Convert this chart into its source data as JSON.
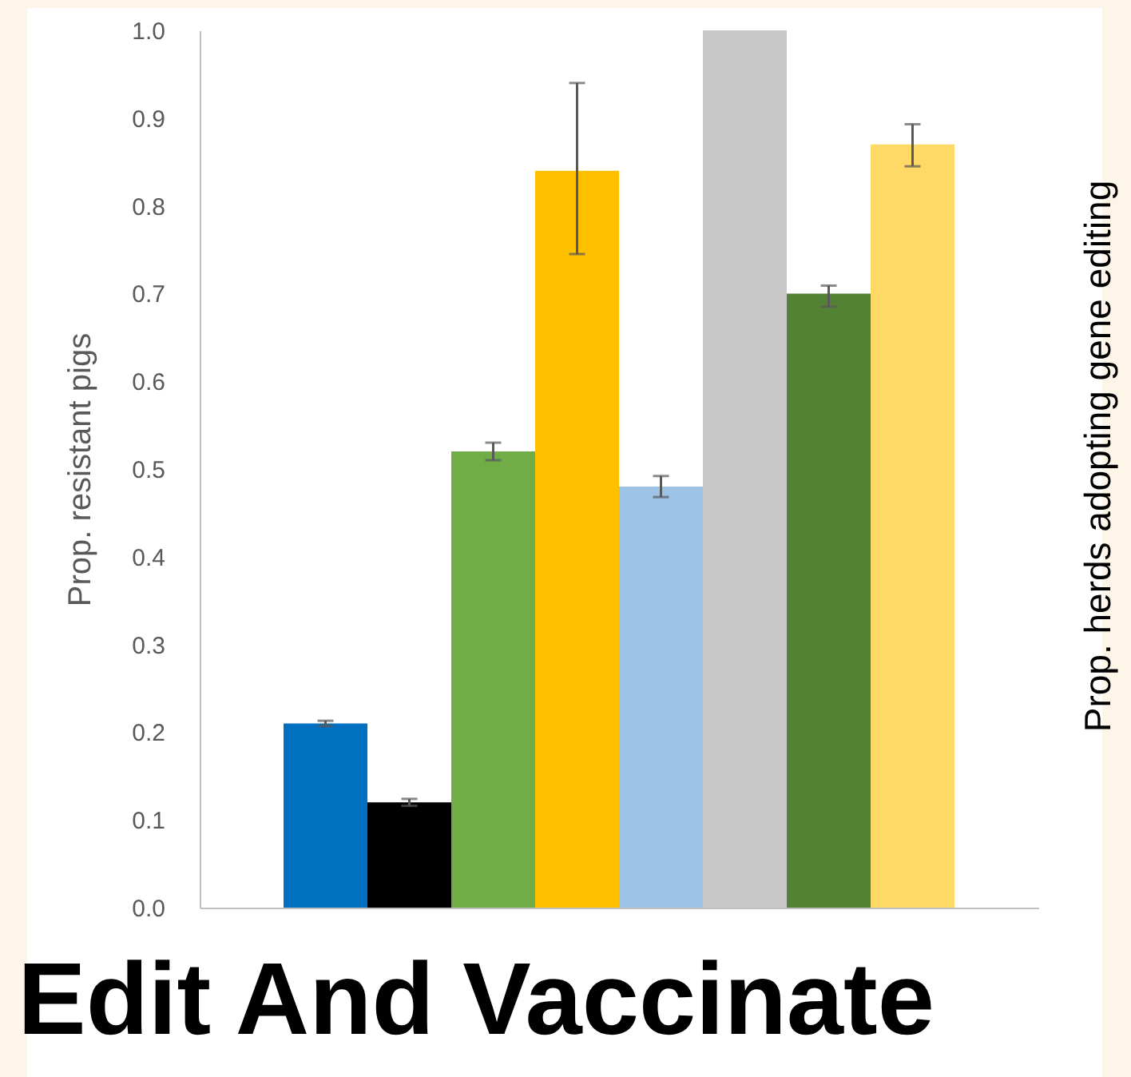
{
  "chart_data": {
    "type": "bar",
    "title": "Edit And Vaccinate",
    "ylabel": "Prop. resistant pigs",
    "y2label": "Prop. herds adopting gene editing",
    "categories": [
      null,
      null,
      null,
      null,
      null,
      null,
      null,
      null
    ],
    "values": [
      0.21,
      0.12,
      0.52,
      0.84,
      0.48,
      1.0,
      0.7,
      0.87
    ],
    "colors": [
      "#0070c0",
      "#000000",
      "#70ad47",
      "#ffc000",
      "#9dc3e6",
      "#c8c8c8",
      "#548235",
      "#ffd966"
    ],
    "errors": [
      0.003,
      0.004,
      0.01,
      [
        0.745,
        0.94
      ],
      0.012,
      null,
      [
        0.685,
        0.709
      ],
      [
        0.845,
        0.893
      ]
    ],
    "ylim": [
      0,
      1.0
    ],
    "yticks": [
      {
        "value": 0,
        "label": "0.0"
      },
      0.1,
      0.2,
      0.3,
      0.4,
      0.5,
      0.6,
      0.7,
      0.8,
      0.9,
      {
        "value": 1,
        "label": "1.0"
      }
    ],
    "grid": false
  }
}
